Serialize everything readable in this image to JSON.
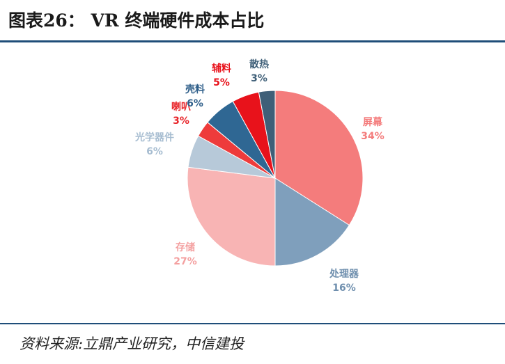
{
  "header": {
    "title": "图表26： VR 终端硬件成本占比"
  },
  "footer": {
    "source": "资料来源:立鼎产业研究，中信建投"
  },
  "chart_data": {
    "type": "pie",
    "title": "图表26： VR 终端硬件成本占比",
    "slices": [
      {
        "name": "屏幕",
        "value": 34,
        "label": "34%",
        "color": "#f47c7c",
        "label_color": "#f47c7c"
      },
      {
        "name": "处理器",
        "value": 16,
        "label": "16%",
        "color": "#7f9fbc",
        "label_color": "#6f8fae"
      },
      {
        "name": "存储",
        "value": 27,
        "label": "27%",
        "color": "#f8b4b4",
        "label_color": "#f4a0a0"
      },
      {
        "name": "光学器件",
        "value": 6,
        "label": "6%",
        "color": "#b7c9d9",
        "label_color": "#a7bdd1"
      },
      {
        "name": "喇叭",
        "value": 3,
        "label": "3%",
        "color": "#ee3b3b",
        "label_color": "#e8262b"
      },
      {
        "name": "壳料",
        "value": 6,
        "label": "6%",
        "color": "#2f6793",
        "label_color": "#2f5f8a"
      },
      {
        "name": "辅料",
        "value": 5,
        "label": "5%",
        "color": "#e8121b",
        "label_color": "#e8121b"
      },
      {
        "name": "散热",
        "value": 3,
        "label": "3%",
        "color": "#3f5f78",
        "label_color": "#3f5f78"
      }
    ]
  }
}
